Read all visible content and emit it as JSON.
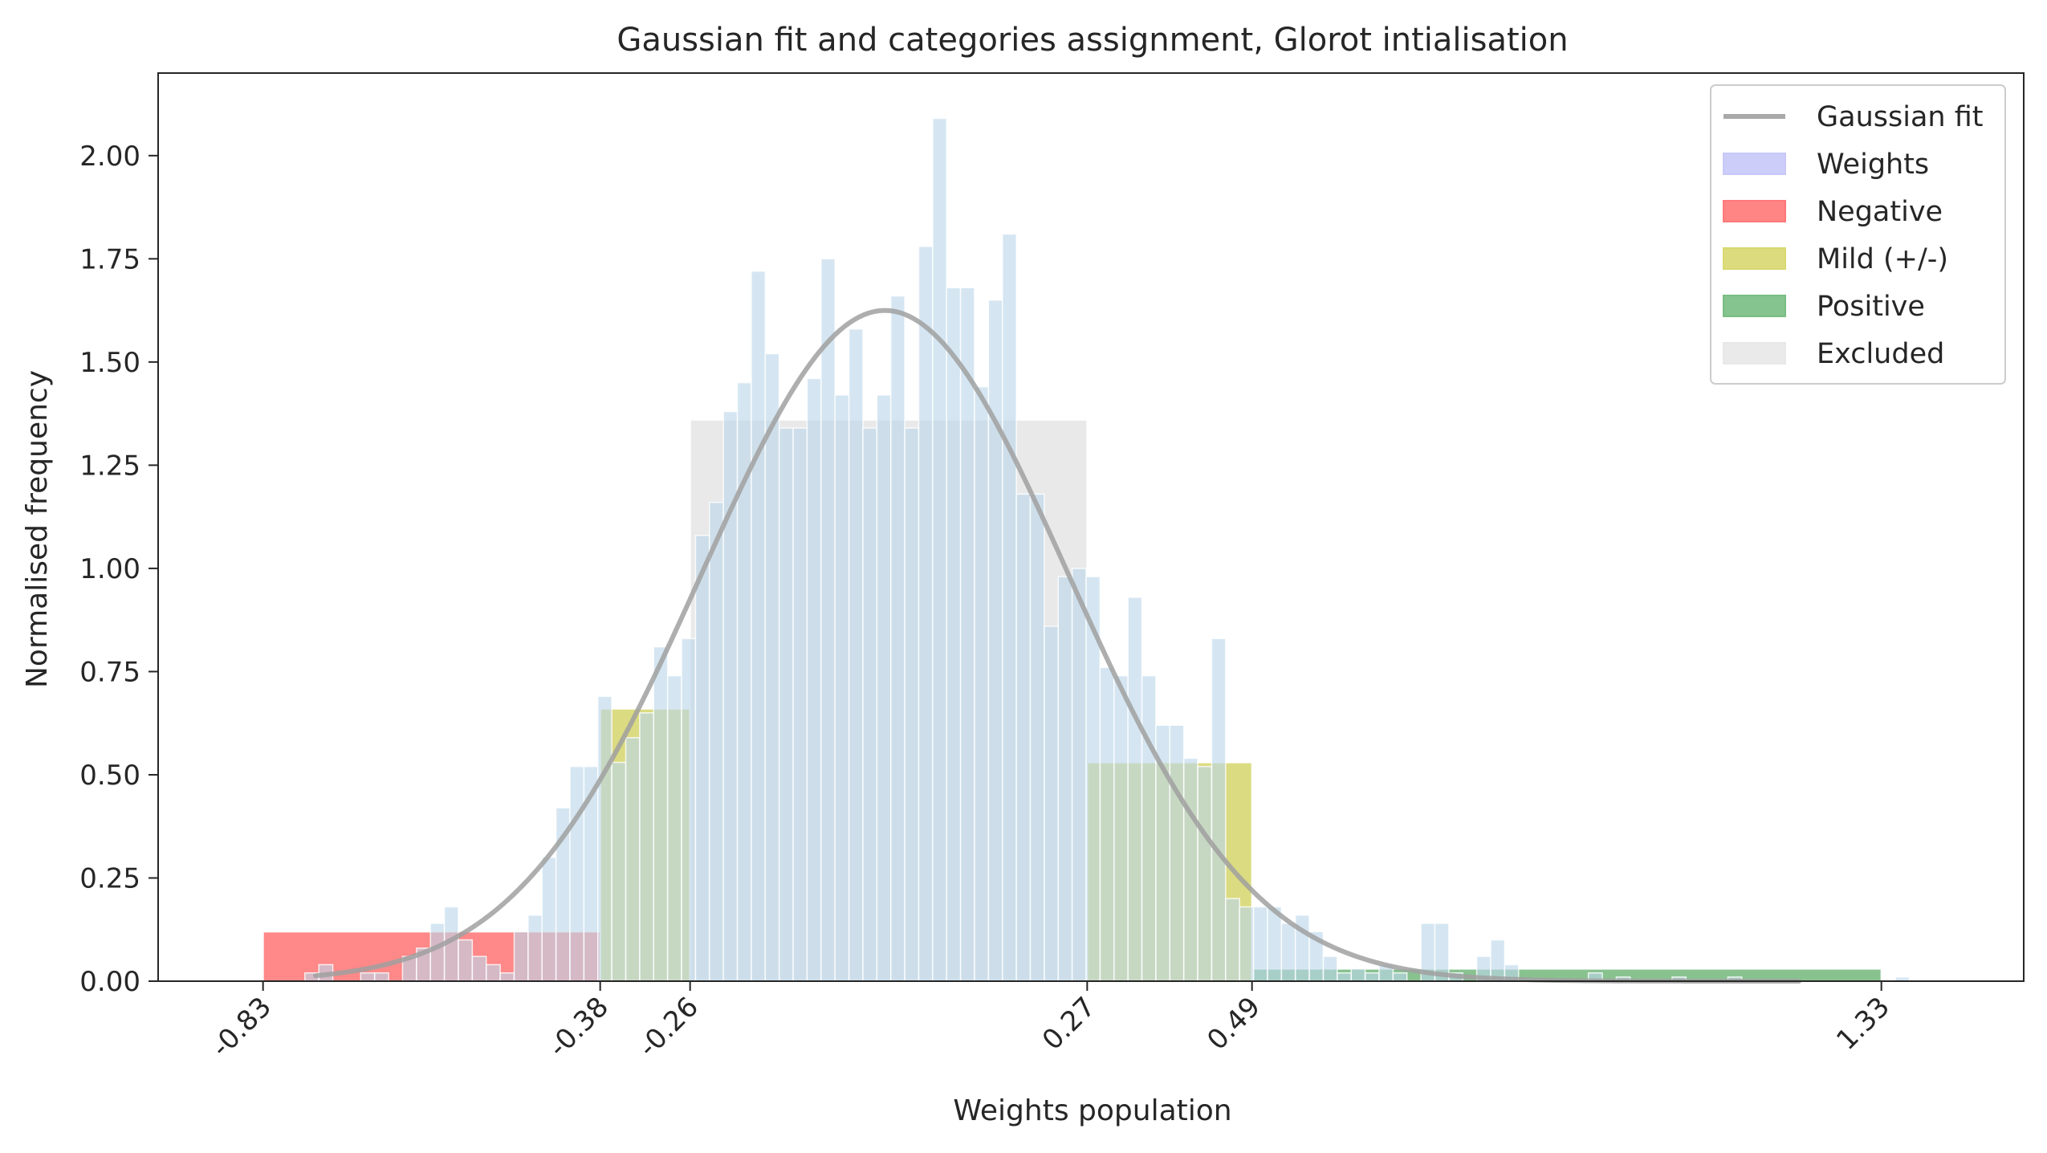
{
  "chart_data": {
    "type": "bar",
    "title": "Gaussian fit and categories assignment, Glorot intialisation",
    "xlabel": "Weights population",
    "ylabel": "Normalised frequency",
    "xlim": [
      -0.97,
      1.52
    ],
    "ylim": [
      0,
      2.2
    ],
    "grid": false,
    "legend_position": "top-right",
    "x_ticks": [
      -0.83,
      -0.38,
      -0.26,
      0.27,
      0.49,
      1.33
    ],
    "x_tick_labels": [
      "-0.83",
      "-0.38",
      "-0.26",
      "0.27",
      "0.49",
      "1.33"
    ],
    "y_ticks": [
      0.0,
      0.25,
      0.5,
      0.75,
      1.0,
      1.25,
      1.5,
      1.75,
      2.0
    ],
    "y_tick_labels": [
      "0.00",
      "0.25",
      "0.50",
      "0.75",
      "1.00",
      "1.25",
      "1.50",
      "1.75",
      "2.00"
    ],
    "legend": [
      {
        "label": "Gaussian fit",
        "kind": "line",
        "color": "#a9a9a9"
      },
      {
        "label": "Weights",
        "kind": "patch",
        "color": "#c8c8fa"
      },
      {
        "label": "Negative",
        "kind": "patch",
        "color": "#ff7878"
      },
      {
        "label": "Mild (+/-)",
        "kind": "patch",
        "color": "#d8d870"
      },
      {
        "label": "Positive",
        "kind": "patch",
        "color": "#78be82"
      },
      {
        "label": "Excluded",
        "kind": "patch",
        "color": "#e8e8e8"
      }
    ],
    "series": [
      {
        "name": "Weights",
        "color": "#bcd6ea",
        "bin_start": -0.83,
        "bin_width": 0.01862,
        "values": [
          0,
          0,
          0,
          0.02,
          0.04,
          0,
          0,
          0.02,
          0.02,
          0,
          0.06,
          0.08,
          0.14,
          0.18,
          0.1,
          0.06,
          0.04,
          0.02,
          0.12,
          0.16,
          0.3,
          0.42,
          0.52,
          0.52,
          0.69,
          0.53,
          0.59,
          0.65,
          0.81,
          0.74,
          0.83,
          1.08,
          1.16,
          1.38,
          1.45,
          1.72,
          1.52,
          1.34,
          1.34,
          1.46,
          1.75,
          1.42,
          1.58,
          1.34,
          1.42,
          1.66,
          1.34,
          1.78,
          2.09,
          1.68,
          1.68,
          1.44,
          1.65,
          1.81,
          1.18,
          1.18,
          0.86,
          0.98,
          1.0,
          0.98,
          0.76,
          0.74,
          0.93,
          0.74,
          0.62,
          0.62,
          0.54,
          0.52,
          0.83,
          0.2,
          0.18,
          0.18,
          0.18,
          0.14,
          0.16,
          0.12,
          0.06,
          0.02,
          0.03,
          0.02,
          0.04,
          0.02,
          0.0,
          0.14,
          0.14,
          0.02,
          0.0,
          0.06,
          0.1,
          0.04,
          0,
          0,
          0,
          0,
          0,
          0.02,
          0,
          0.01,
          0,
          0,
          0,
          0.01,
          0,
          0,
          0,
          0.01,
          0,
          0,
          0,
          0,
          0,
          0,
          0,
          0,
          0,
          0,
          0,
          0.01
        ]
      }
    ],
    "category_regions": [
      {
        "name": "Negative",
        "x0": -0.83,
        "x1": -0.38,
        "height": 0.12,
        "color": "#ff5a5a"
      },
      {
        "name": "Mild (+/-)",
        "x0": -0.38,
        "x1": -0.26,
        "height": 0.66,
        "color": "#cdcd50"
      },
      {
        "name": "Excluded",
        "x0": -0.26,
        "x1": 0.27,
        "height": 1.36,
        "color": "#dcdcdc"
      },
      {
        "name": "Mild (+/-)",
        "x0": 0.27,
        "x1": 0.49,
        "height": 0.53,
        "color": "#cdcd50"
      },
      {
        "name": "Positive",
        "x0": 0.49,
        "x1": 1.33,
        "height": 0.03,
        "color": "#5aaa64"
      }
    ],
    "gaussian_fit": {
      "name": "Gaussian fit",
      "mean": 0.0,
      "std": 0.245,
      "amplitude": 1.625,
      "x_range": [
        -0.76,
        1.22
      ],
      "color": "#a0a0a0"
    }
  }
}
